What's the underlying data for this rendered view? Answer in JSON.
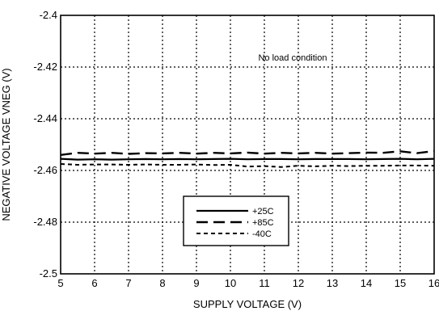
{
  "chart_data": {
    "type": "line",
    "title": "",
    "xlabel": "SUPPLY VOLTAGE (V)",
    "ylabel": "NEGATIVE VOLTAGE VNEG (V)",
    "xlim": [
      5,
      16
    ],
    "ylim": [
      -2.5,
      -2.4
    ],
    "xticks": [
      5,
      6,
      7,
      8,
      9,
      10,
      11,
      12,
      13,
      14,
      15,
      16
    ],
    "yticks": [
      -2.4,
      -2.42,
      -2.44,
      -2.46,
      -2.48,
      -2.5
    ],
    "ytick_labels": [
      "-2.4",
      "-2.42",
      "-2.44",
      "-2.46",
      "-2.48",
      "-2.5"
    ],
    "grid": true,
    "legend_position": "lower-center",
    "annotation": "No load condition",
    "series": [
      {
        "name": "+25C",
        "line_style": "solid",
        "x": [
          5,
          5.5,
          6,
          6.5,
          7,
          7.5,
          8,
          8.5,
          9,
          9.5,
          10,
          10.5,
          11,
          11.5,
          12,
          12.5,
          13,
          13.5,
          14,
          14.5,
          15,
          15.5,
          16
        ],
        "y": [
          -2.4555,
          -2.4558,
          -2.4557,
          -2.4558,
          -2.4557,
          -2.4556,
          -2.4557,
          -2.4556,
          -2.4557,
          -2.4556,
          -2.4555,
          -2.4557,
          -2.4556,
          -2.4556,
          -2.4557,
          -2.4556,
          -2.4556,
          -2.4556,
          -2.4557,
          -2.4556,
          -2.4555,
          -2.4557,
          -2.4555
        ]
      },
      {
        "name": "+85C",
        "line_style": "long-dash",
        "x": [
          5,
          5.5,
          6,
          6.5,
          7,
          7.5,
          8,
          8.5,
          9,
          9.5,
          10,
          10.5,
          11,
          11.5,
          12,
          12.5,
          13,
          13.5,
          14,
          14.5,
          15,
          15.5,
          16
        ],
        "y": [
          -2.454,
          -2.4532,
          -2.4535,
          -2.4532,
          -2.4536,
          -2.4533,
          -2.4534,
          -2.4532,
          -2.4535,
          -2.4532,
          -2.4534,
          -2.4531,
          -2.4535,
          -2.4532,
          -2.4534,
          -2.4532,
          -2.4535,
          -2.4533,
          -2.4531,
          -2.4532,
          -2.4526,
          -2.4533,
          -2.4525
        ]
      },
      {
        "name": "-40C",
        "line_style": "short-dash",
        "x": [
          5,
          5.5,
          6,
          6.5,
          7,
          7.5,
          8,
          8.5,
          9,
          9.5,
          10,
          10.5,
          11,
          11.5,
          12,
          12.5,
          13,
          13.5,
          14,
          14.5,
          15,
          15.5,
          16
        ],
        "y": [
          -2.4575,
          -2.4578,
          -2.4577,
          -2.4577,
          -2.4578,
          -2.4577,
          -2.4578,
          -2.4578,
          -2.4577,
          -2.4579,
          -2.4578,
          -2.4585,
          -2.4583,
          -2.4587,
          -2.4582,
          -2.4584,
          -2.4582,
          -2.4583,
          -2.4582,
          -2.4582,
          -2.4581,
          -2.4581,
          -2.4582
        ]
      }
    ]
  }
}
